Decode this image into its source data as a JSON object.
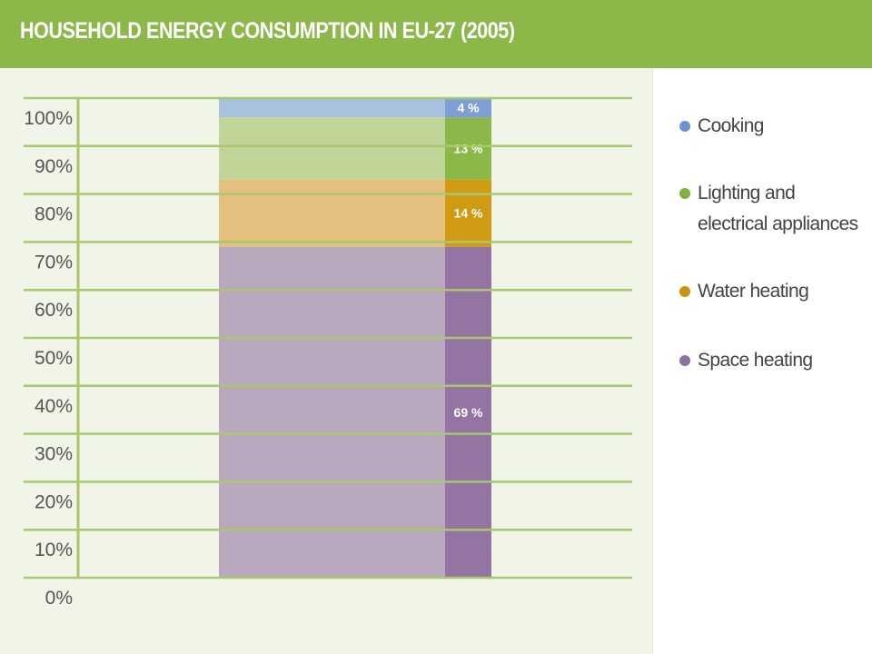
{
  "header": {
    "title": "HOUSEHOLD ENERGY CONSUMPTION IN EU-27 (2005)"
  },
  "chart_data": {
    "type": "bar",
    "stacked": true,
    "categories": [
      ""
    ],
    "series": [
      {
        "name": "Space heating",
        "values": [
          69
        ],
        "label": "69 %",
        "color": "#9474a2",
        "light_color": "#b9a8be"
      },
      {
        "name": "Water heating",
        "values": [
          14
        ],
        "label": "14 %",
        "color": "#d09a12",
        "light_color": "#e3c07d"
      },
      {
        "name": "Lighting and electrical appliances",
        "values": [
          13
        ],
        "label": "13 %",
        "color": "#8cb749",
        "light_color": "#c0d597"
      },
      {
        "name": "Cooking",
        "values": [
          4
        ],
        "label": "4 %",
        "color": "#7d9fd6",
        "light_color": "#a8c1e0"
      }
    ],
    "yticks": [
      "0%",
      "10%",
      "20%",
      "30%",
      "40%",
      "50%",
      "60%",
      "70%",
      "80%",
      "90%",
      "100%"
    ],
    "ylim": [
      0,
      100
    ],
    "grid": true,
    "legend_position": "right"
  },
  "legend": {
    "items": [
      {
        "lines": [
          "Cooking"
        ],
        "color": "#6f93cf"
      },
      {
        "lines": [
          "Lighting and",
          "electrical appliances"
        ],
        "color": "#82b23c"
      },
      {
        "lines": [
          "Water heating"
        ],
        "color": "#c9930c"
      },
      {
        "lines": [
          "Space heating"
        ],
        "color": "#8c72a0"
      }
    ]
  },
  "colors": {
    "header_bg": "#8cb749",
    "plot_bg": "#f1f5e7",
    "grid": "#a8c86c"
  }
}
